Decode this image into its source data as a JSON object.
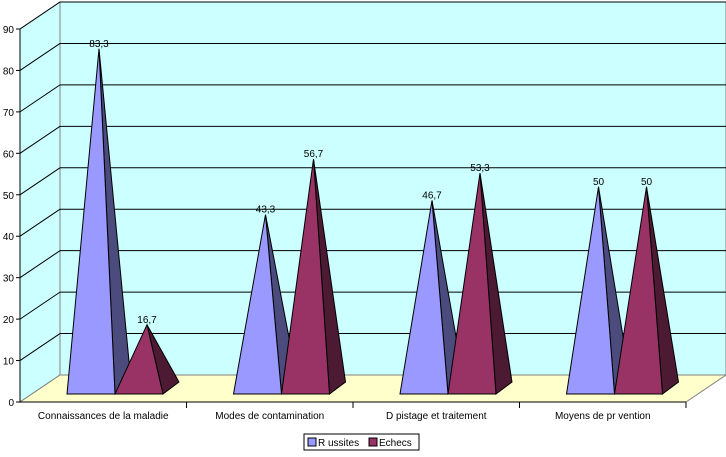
{
  "chart_data": {
    "type": "bar",
    "style": "3d-pyramid",
    "categories": [
      "Connaissances de la maladie",
      "Modes de contamination",
      "D pistage et traitement",
      "Moyens de pr vention"
    ],
    "series": [
      {
        "name": "R ussites",
        "color": "#9999ff",
        "shade": "#4b4b7e",
        "values": [
          83.3,
          43.3,
          46.7,
          50
        ]
      },
      {
        "name": "Echecs",
        "color": "#993366",
        "shade": "#4d1a33",
        "values": [
          16.7,
          56.7,
          53.3,
          50
        ]
      }
    ],
    "data_labels": [
      [
        "83,3",
        "43,3",
        "46,7",
        "50"
      ],
      [
        "16,7",
        "56,7",
        "53,3",
        "50"
      ]
    ],
    "yticks": [
      "0",
      "10",
      "20",
      "30",
      "40",
      "50",
      "60",
      "70",
      "80",
      "90"
    ],
    "ylim": [
      0,
      90
    ],
    "grid": true,
    "legend": "bottom",
    "wall_color": "#ccffff",
    "floor_color": "#ffffcc"
  }
}
